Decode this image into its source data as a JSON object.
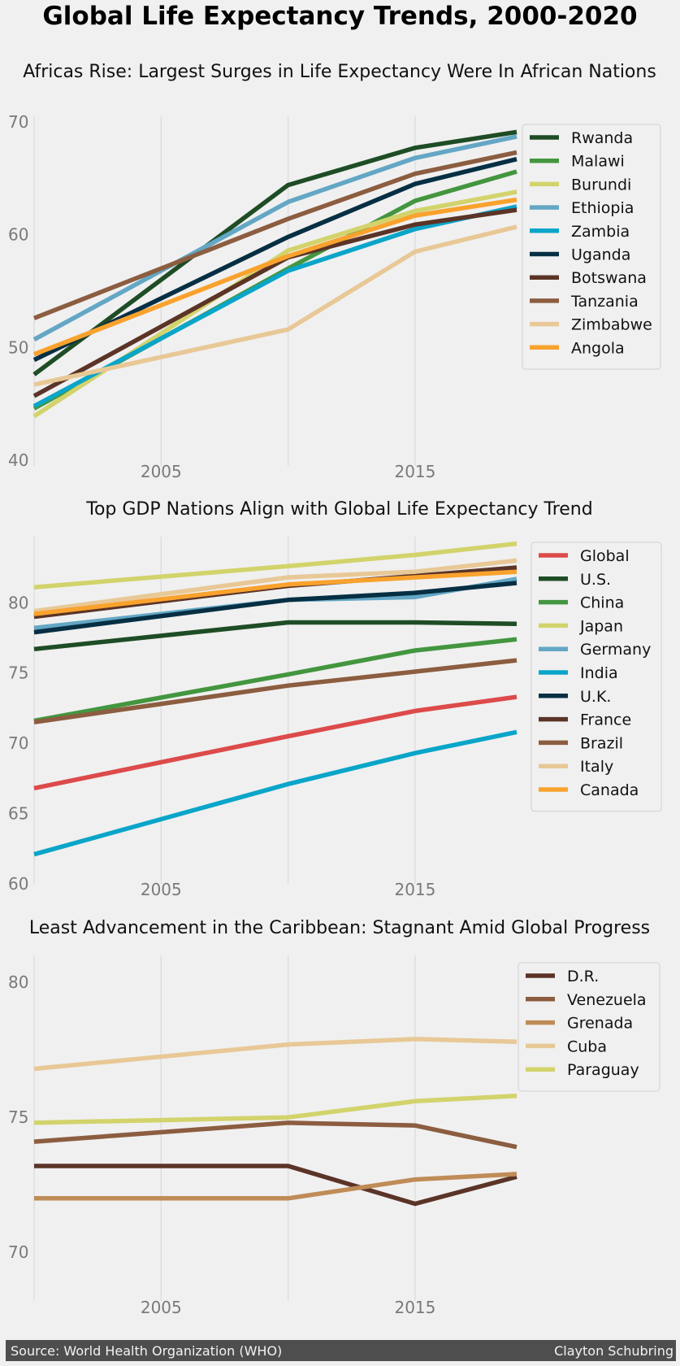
{
  "page": {
    "suptitle": "Global Life Expectancy Trends, 2000-2020",
    "footer_source": "Source: World Health Organization (WHO)",
    "footer_author": "Clayton Schubring"
  },
  "chart_data": [
    {
      "type": "line",
      "title": "Africas Rise: Largest Surges in Life Expectancy Were In African Nations",
      "xlabel": "",
      "ylabel": "",
      "x": [
        2000,
        2010,
        2015,
        2019
      ],
      "xlim": [
        2000,
        2024.5
      ],
      "ylim": [
        39.5,
        70.5
      ],
      "xticks": [
        2005,
        2015
      ],
      "yticks": [
        40,
        50,
        60,
        70
      ],
      "grid": true,
      "legend": "top-right",
      "series": [
        {
          "name": "Rwanda",
          "color": "#1e4d25",
          "values": [
            47.6,
            64.4,
            67.7,
            69.1
          ]
        },
        {
          "name": "Malawi",
          "color": "#43963f",
          "values": [
            44.6,
            57.0,
            63.0,
            65.6
          ]
        },
        {
          "name": "Burundi",
          "color": "#d2d36b",
          "values": [
            43.9,
            58.6,
            62.1,
            63.8
          ]
        },
        {
          "name": "Ethiopia",
          "color": "#63a7c5",
          "values": [
            50.7,
            62.9,
            66.8,
            68.7
          ]
        },
        {
          "name": "Zambia",
          "color": "#0aa5c9",
          "values": [
            44.8,
            56.8,
            60.5,
            62.5
          ]
        },
        {
          "name": "Uganda",
          "color": "#062f43",
          "values": [
            48.9,
            59.8,
            64.5,
            66.7
          ]
        },
        {
          "name": "Botswana",
          "color": "#5b3427",
          "values": [
            45.7,
            58.0,
            60.9,
            62.2
          ]
        },
        {
          "name": "Tanzania",
          "color": "#8c5d40",
          "values": [
            52.6,
            61.4,
            65.4,
            67.3
          ]
        },
        {
          "name": "Zimbabwe",
          "color": "#e8c896",
          "values": [
            46.7,
            51.6,
            58.5,
            60.7
          ]
        },
        {
          "name": "Angola",
          "color": "#f9a22d",
          "values": [
            49.4,
            58.1,
            61.7,
            63.1
          ]
        }
      ]
    },
    {
      "type": "line",
      "title": "Top GDP Nations Align with Global Life Expectancy Trend",
      "xlabel": "",
      "ylabel": "",
      "x": [
        2000,
        2010,
        2015,
        2019
      ],
      "xlim": [
        2000,
        2024.5
      ],
      "ylim": [
        60,
        84.7
      ],
      "xticks": [
        2005,
        2015
      ],
      "yticks": [
        60,
        65,
        70,
        75,
        80
      ],
      "grid": true,
      "legend": "top-right",
      "series": [
        {
          "name": "Global",
          "color": "#dd4a4a",
          "values": [
            66.8,
            70.5,
            72.3,
            73.3
          ]
        },
        {
          "name": "U.S.",
          "color": "#1e4d25",
          "values": [
            76.7,
            78.6,
            78.6,
            78.5
          ]
        },
        {
          "name": "China",
          "color": "#43963f",
          "values": [
            71.6,
            74.9,
            76.6,
            77.4
          ]
        },
        {
          "name": "Japan",
          "color": "#d2d36b",
          "values": [
            81.1,
            82.6,
            83.4,
            84.2
          ]
        },
        {
          "name": "Germany",
          "color": "#63a7c5",
          "values": [
            78.2,
            80.2,
            80.4,
            81.7
          ]
        },
        {
          "name": "India",
          "color": "#0aa5c9",
          "values": [
            62.1,
            67.1,
            69.3,
            70.8
          ]
        },
        {
          "name": "U.K.",
          "color": "#062f43",
          "values": [
            77.9,
            80.2,
            80.7,
            81.4
          ]
        },
        {
          "name": "France",
          "color": "#5b3427",
          "values": [
            79.0,
            81.2,
            81.9,
            82.5
          ]
        },
        {
          "name": "Brazil",
          "color": "#8c5d40",
          "values": [
            71.5,
            74.1,
            75.1,
            75.9
          ]
        },
        {
          "name": "Italy",
          "color": "#e8c896",
          "values": [
            79.4,
            81.8,
            82.2,
            83.0
          ]
        },
        {
          "name": "Canada",
          "color": "#f9a22d",
          "values": [
            79.2,
            81.3,
            81.8,
            82.2
          ]
        }
      ]
    },
    {
      "type": "line",
      "title": "Least Advancement in the Caribbean: Stagnant Amid Global Progress",
      "xlabel": "",
      "ylabel": "",
      "x": [
        2000,
        2010,
        2015,
        2019
      ],
      "xlim": [
        2000,
        2024.5
      ],
      "ylim": [
        68.2,
        81.0
      ],
      "xticks": [
        2005,
        2015
      ],
      "yticks": [
        70,
        75,
        80
      ],
      "grid": true,
      "legend": "top-right",
      "series": [
        {
          "name": "D.R.",
          "color": "#5b3427",
          "values": [
            73.2,
            73.2,
            71.8,
            72.8
          ]
        },
        {
          "name": "Venezuela",
          "color": "#8c5d40",
          "values": [
            74.1,
            74.8,
            74.7,
            73.9
          ]
        },
        {
          "name": "Grenada",
          "color": "#bf8c57",
          "values": [
            72.0,
            72.0,
            72.7,
            72.9
          ]
        },
        {
          "name": "Cuba",
          "color": "#e8c896",
          "values": [
            76.8,
            77.7,
            77.9,
            77.8
          ]
        },
        {
          "name": "Paraguay",
          "color": "#d2d36b",
          "values": [
            74.8,
            75.0,
            75.6,
            75.8
          ]
        }
      ]
    }
  ]
}
